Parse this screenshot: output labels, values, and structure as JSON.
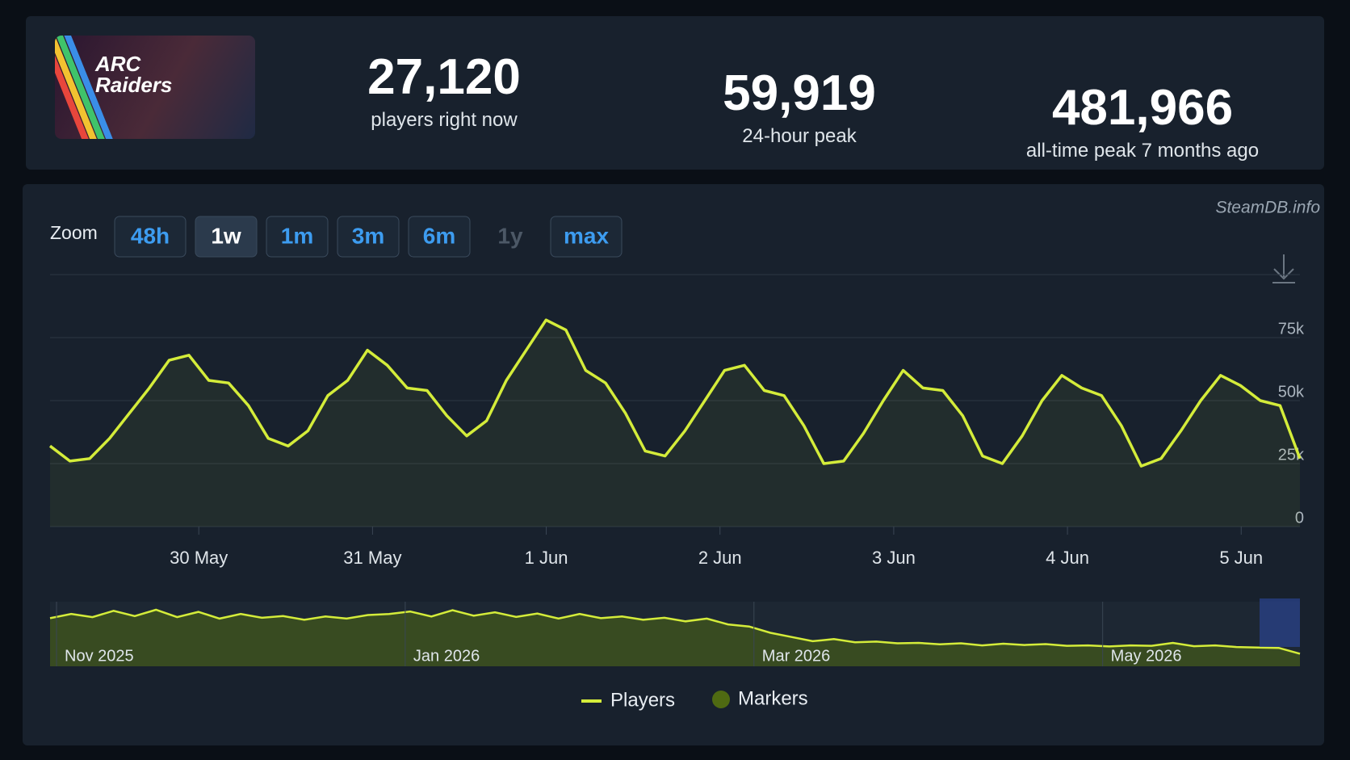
{
  "header": {
    "logo_text": "ARC Raiders",
    "stats": [
      {
        "value": "27,120",
        "label": "players right now"
      },
      {
        "value": "59,919",
        "label": "24-hour peak"
      },
      {
        "value": "481,966",
        "label": "all-time peak 7 months ago"
      }
    ]
  },
  "watermark": "SteamDB.info",
  "zoom": {
    "label": "Zoom",
    "buttons": [
      "48h",
      "1w",
      "1m",
      "3m",
      "6m",
      "1y",
      "max"
    ],
    "active": "1w",
    "disabled": "1y"
  },
  "chart_data": {
    "type": "line",
    "xticks": [
      "30 May",
      "31 May",
      "1 Jun",
      "2 Jun",
      "3 Jun",
      "4 Jun",
      "5 Jun"
    ],
    "ylim": [
      0,
      100000
    ],
    "yticks": [
      0,
      {
        "value": 25000,
        "label": "25k"
      },
      {
        "value": 50000,
        "label": "50k"
      },
      {
        "value": 75000,
        "label": "75k"
      }
    ],
    "series": [
      {
        "name": "Players",
        "color": "#d4ec3a",
        "values": [
          32000,
          26000,
          27000,
          35000,
          45000,
          55000,
          66000,
          68000,
          58000,
          57000,
          48000,
          35000,
          32000,
          38000,
          52000,
          58000,
          70000,
          64000,
          55000,
          54000,
          44000,
          36000,
          42000,
          58000,
          70000,
          82000,
          78000,
          62000,
          57000,
          45000,
          30000,
          28000,
          38000,
          50000,
          62000,
          64000,
          54000,
          52000,
          40000,
          25000,
          26000,
          37000,
          50000,
          62000,
          55000,
          54000,
          44000,
          28000,
          25000,
          36000,
          50000,
          60000,
          55000,
          52000,
          40000,
          24000,
          27000,
          38000,
          50000,
          60000,
          56000,
          50000,
          48000,
          27000
        ]
      },
      {
        "name": "Markers",
        "color": "#4f6a12"
      }
    ],
    "navigator": {
      "labels": [
        "Nov 2025",
        "Jan 2026",
        "Mar 2026",
        "May 2026"
      ],
      "values": [
        230000,
        250000,
        235000,
        265000,
        240000,
        270000,
        235000,
        260000,
        228000,
        250000,
        232000,
        240000,
        222000,
        238000,
        228000,
        245000,
        250000,
        262000,
        238000,
        268000,
        242000,
        258000,
        236000,
        252000,
        228000,
        250000,
        230000,
        238000,
        222000,
        232000,
        215000,
        228000,
        200000,
        190000,
        160000,
        140000,
        120000,
        130000,
        115000,
        118000,
        110000,
        112000,
        105000,
        110000,
        100000,
        108000,
        102000,
        106000,
        98000,
        100000,
        95000,
        100000,
        98000,
        112000,
        96000,
        100000,
        92000,
        90000,
        88000,
        60000
      ]
    }
  }
}
